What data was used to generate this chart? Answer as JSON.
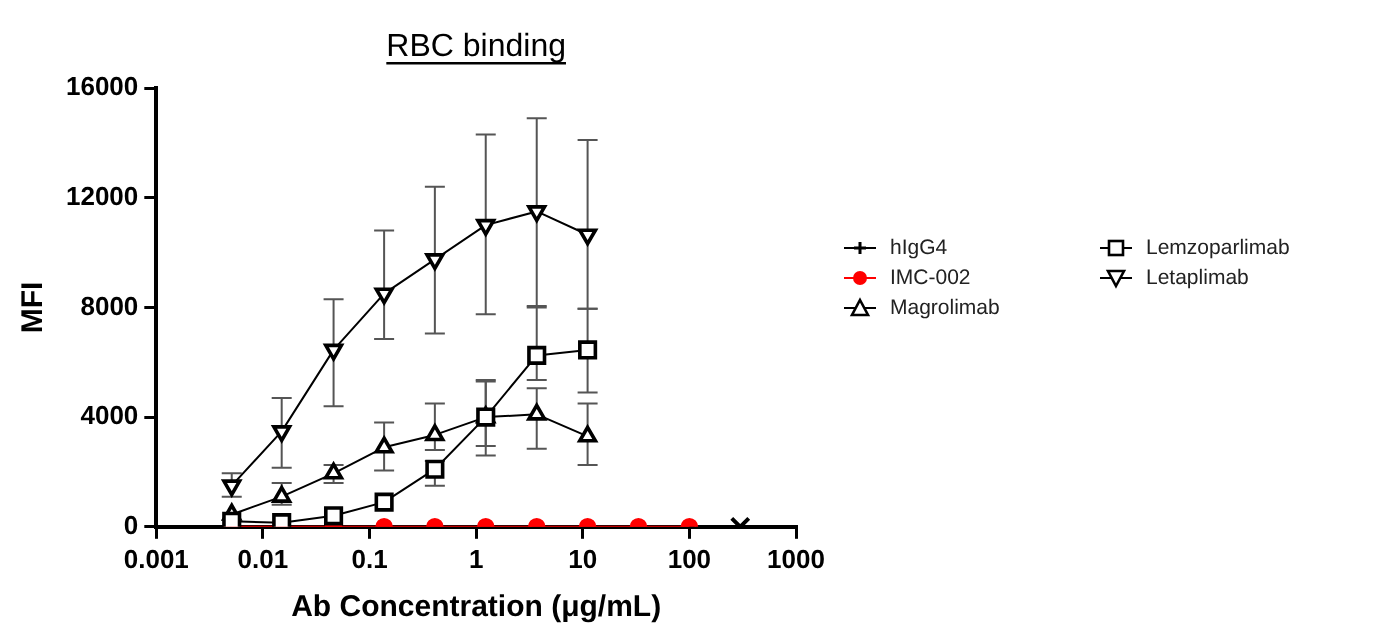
{
  "chart_data": {
    "type": "line",
    "title": "RBC binding",
    "xlabel": "Ab Concentration (μg/mL)",
    "ylabel": "MFI",
    "log": "x",
    "xlim": [
      0.001,
      1000
    ],
    "xticks": [
      0.001,
      0.01,
      0.1,
      1,
      10,
      100,
      1000
    ],
    "ylim": [
      0,
      16000
    ],
    "yticks": [
      0,
      4000,
      8000,
      12000,
      16000
    ],
    "grid": false,
    "legend": "right",
    "series": [
      {
        "name": "hIgG4",
        "color": "#000000",
        "marker": "cross",
        "x": [
          300
        ],
        "values": [
          0
        ]
      },
      {
        "name": "IMC-002",
        "color": "#ff0000",
        "marker": "circle",
        "x": [
          0.0051,
          0.015,
          0.046,
          0.137,
          0.41,
          1.23,
          3.7,
          11.1,
          33.3,
          100
        ],
        "values": [
          0,
          0,
          0,
          0,
          0,
          0,
          0,
          0,
          0,
          0
        ]
      },
      {
        "name": "Magrolimab",
        "color": "#000000",
        "marker": "triangle",
        "x": [
          0.0051,
          0.015,
          0.046,
          0.137,
          0.41,
          1.23,
          3.7,
          11.1
        ],
        "values": [
          450,
          1100,
          1950,
          2900,
          3350,
          4000,
          4100,
          3300
        ],
        "errors": [
          null,
          [
            800,
            1600
          ],
          [
            1600,
            2250
          ],
          [
            2050,
            3800
          ],
          [
            2800,
            4500
          ],
          [
            2600,
            5300
          ],
          [
            2850,
            5050
          ],
          [
            2250,
            4500
          ]
        ]
      },
      {
        "name": "Lemzoparlimab",
        "color": "#000000",
        "marker": "square",
        "x": [
          0.0051,
          0.015,
          0.046,
          0.137,
          0.41,
          1.23,
          3.7,
          11.1
        ],
        "values": [
          200,
          150,
          400,
          900,
          2100,
          4000,
          6250,
          6450
        ],
        "errors": [
          null,
          null,
          null,
          null,
          [
            1500,
            2400
          ],
          [
            2950,
            5350
          ],
          [
            5350,
            8050
          ],
          [
            4900,
            7950
          ]
        ]
      },
      {
        "name": "Letaplimab",
        "color": "#000000",
        "marker": "triangle-down",
        "x": [
          0.0051,
          0.015,
          0.046,
          0.137,
          0.41,
          1.23,
          3.7,
          11.1
        ],
        "values": [
          1500,
          3480,
          6450,
          8500,
          9750,
          11000,
          11500,
          10650
        ],
        "errors": [
          [
            1100,
            1950
          ],
          [
            2150,
            4700
          ],
          [
            4400,
            8300
          ],
          [
            6850,
            10800
          ],
          [
            7050,
            12400
          ],
          [
            7750,
            14300
          ],
          [
            8000,
            14900
          ],
          [
            7950,
            14100
          ]
        ]
      }
    ]
  }
}
